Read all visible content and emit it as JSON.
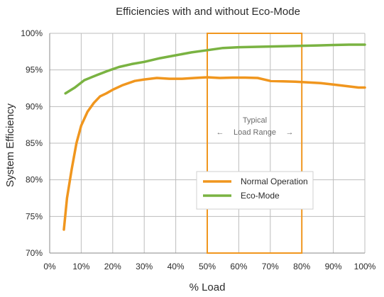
{
  "chart_data": {
    "type": "line",
    "title": "Efficiencies with and without Eco-Mode",
    "xlabel": "% Load",
    "ylabel": "System Efficiency",
    "xlim": [
      0,
      100
    ],
    "ylim": [
      70,
      100
    ],
    "x_ticks": [
      0,
      10,
      20,
      30,
      40,
      50,
      60,
      70,
      80,
      90,
      100
    ],
    "y_ticks": [
      70,
      75,
      80,
      85,
      90,
      95,
      100
    ],
    "x_tick_labels": [
      "0%",
      "10%",
      "20%",
      "30%",
      "40%",
      "50%",
      "60%",
      "70%",
      "80%",
      "90%",
      "100%"
    ],
    "y_tick_labels": [
      "70%",
      "75%",
      "80%",
      "85%",
      "90%",
      "95%",
      "100%"
    ],
    "grid": true,
    "legend_position": "center-right",
    "series": [
      {
        "name": "Normal Operation",
        "color": "#f0961e",
        "x": [
          4.5,
          5.5,
          7,
          8.5,
          10,
          12,
          14,
          16,
          18,
          20,
          23,
          27,
          30,
          34,
          38,
          42,
          46,
          50,
          54,
          58,
          62,
          66,
          70,
          74,
          78,
          82,
          86,
          90,
          94,
          98,
          100
        ],
        "y": [
          73.2,
          77.5,
          81.5,
          85.0,
          87.4,
          89.3,
          90.5,
          91.4,
          91.8,
          92.3,
          92.9,
          93.5,
          93.7,
          93.9,
          93.8,
          93.8,
          93.9,
          94.0,
          93.9,
          93.95,
          93.95,
          93.9,
          93.5,
          93.45,
          93.4,
          93.3,
          93.2,
          93.0,
          92.8,
          92.6,
          92.6
        ]
      },
      {
        "name": "Eco-Mode",
        "color": "#7ab342",
        "x": [
          5,
          8,
          11,
          15,
          18,
          22,
          26,
          30,
          35,
          40,
          45,
          50,
          55,
          60,
          65,
          70,
          75,
          80,
          85,
          90,
          95,
          100
        ],
        "y": [
          91.8,
          92.6,
          93.6,
          94.3,
          94.8,
          95.4,
          95.8,
          96.1,
          96.6,
          97.0,
          97.4,
          97.7,
          98.0,
          98.1,
          98.15,
          98.2,
          98.25,
          98.3,
          98.35,
          98.4,
          98.45,
          98.45
        ]
      }
    ],
    "annotations": [
      {
        "type": "region",
        "x_range": [
          50,
          80
        ],
        "color": "#f0961e",
        "label_line1": "Typical",
        "label_line2": "Load Range",
        "arrow_left": "←",
        "arrow_right": "→"
      }
    ]
  }
}
